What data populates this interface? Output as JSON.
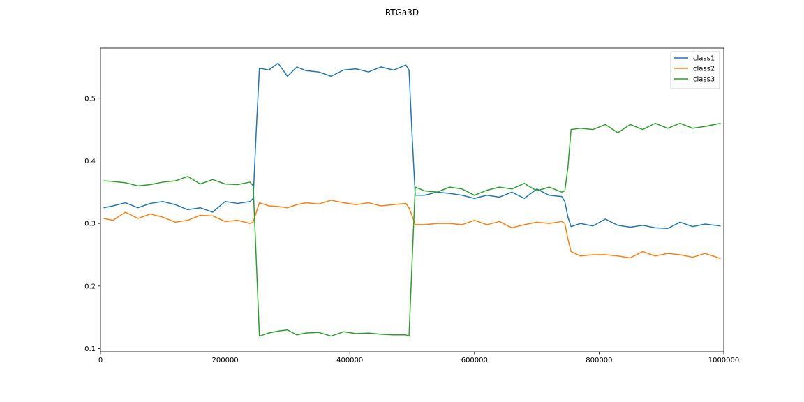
{
  "chart_data": {
    "type": "line",
    "title": "RTGa3D",
    "xlabel": "",
    "ylabel": "",
    "xlim": [
      0,
      1000000
    ],
    "ylim": [
      0.095,
      0.58
    ],
    "xticks": [
      0,
      200000,
      400000,
      600000,
      800000,
      1000000
    ],
    "xtick_labels": [
      "0",
      "200000",
      "400000",
      "600000",
      "800000",
      "1000000"
    ],
    "yticks": [
      0.1,
      0.2,
      0.3,
      0.4,
      0.5
    ],
    "ytick_labels": [
      "0.1",
      "0.2",
      "0.3",
      "0.4",
      "0.5"
    ],
    "grid": false,
    "legend_position": "top-right",
    "series": [
      {
        "name": "class1",
        "color": "#1f77b4",
        "x": [
          5000,
          20000,
          40000,
          60000,
          80000,
          100000,
          120000,
          140000,
          160000,
          180000,
          200000,
          220000,
          240000,
          245000,
          250000,
          255000,
          270000,
          285000,
          300000,
          315000,
          330000,
          350000,
          370000,
          390000,
          410000,
          430000,
          450000,
          470000,
          490000,
          495000,
          500000,
          505000,
          520000,
          540000,
          560000,
          580000,
          600000,
          620000,
          640000,
          660000,
          680000,
          700000,
          720000,
          740000,
          745000,
          750000,
          755000,
          770000,
          790000,
          810000,
          830000,
          850000,
          870000,
          890000,
          910000,
          930000,
          950000,
          970000,
          995000
        ],
        "y": [
          0.325,
          0.328,
          0.333,
          0.325,
          0.332,
          0.335,
          0.33,
          0.322,
          0.325,
          0.318,
          0.335,
          0.332,
          0.335,
          0.34,
          0.45,
          0.548,
          0.545,
          0.556,
          0.535,
          0.55,
          0.544,
          0.542,
          0.535,
          0.545,
          0.547,
          0.542,
          0.55,
          0.545,
          0.553,
          0.545,
          0.44,
          0.345,
          0.345,
          0.35,
          0.348,
          0.345,
          0.34,
          0.345,
          0.342,
          0.35,
          0.34,
          0.355,
          0.345,
          0.343,
          0.335,
          0.31,
          0.295,
          0.3,
          0.296,
          0.307,
          0.297,
          0.294,
          0.297,
          0.293,
          0.292,
          0.302,
          0.295,
          0.299,
          0.296
        ]
      },
      {
        "name": "class2",
        "color": "#ff7f0e",
        "x": [
          5000,
          20000,
          40000,
          60000,
          80000,
          100000,
          120000,
          140000,
          160000,
          180000,
          200000,
          220000,
          240000,
          245000,
          250000,
          255000,
          270000,
          285000,
          300000,
          315000,
          330000,
          350000,
          370000,
          390000,
          410000,
          430000,
          450000,
          470000,
          490000,
          495000,
          500000,
          505000,
          520000,
          540000,
          560000,
          580000,
          600000,
          620000,
          640000,
          660000,
          680000,
          700000,
          720000,
          740000,
          745000,
          750000,
          755000,
          770000,
          790000,
          810000,
          830000,
          850000,
          870000,
          890000,
          910000,
          930000,
          950000,
          970000,
          995000
        ],
        "y": [
          0.308,
          0.305,
          0.318,
          0.308,
          0.315,
          0.31,
          0.302,
          0.305,
          0.313,
          0.312,
          0.303,
          0.305,
          0.3,
          0.302,
          0.318,
          0.333,
          0.328,
          0.327,
          0.325,
          0.33,
          0.333,
          0.331,
          0.337,
          0.333,
          0.33,
          0.333,
          0.328,
          0.33,
          0.332,
          0.325,
          0.312,
          0.298,
          0.298,
          0.3,
          0.3,
          0.298,
          0.305,
          0.298,
          0.303,
          0.293,
          0.298,
          0.302,
          0.3,
          0.303,
          0.3,
          0.275,
          0.255,
          0.248,
          0.25,
          0.25,
          0.248,
          0.245,
          0.255,
          0.248,
          0.252,
          0.25,
          0.246,
          0.252,
          0.244
        ]
      },
      {
        "name": "class3",
        "color": "#2ca02c",
        "x": [
          5000,
          20000,
          40000,
          60000,
          80000,
          100000,
          120000,
          140000,
          160000,
          180000,
          200000,
          220000,
          240000,
          245000,
          250000,
          255000,
          270000,
          285000,
          300000,
          315000,
          330000,
          350000,
          370000,
          390000,
          410000,
          430000,
          450000,
          470000,
          490000,
          495000,
          500000,
          505000,
          520000,
          540000,
          560000,
          580000,
          600000,
          620000,
          640000,
          660000,
          680000,
          700000,
          720000,
          740000,
          745000,
          750000,
          755000,
          770000,
          790000,
          810000,
          830000,
          850000,
          870000,
          890000,
          910000,
          930000,
          950000,
          970000,
          995000
        ],
        "y": [
          0.368,
          0.367,
          0.365,
          0.36,
          0.362,
          0.366,
          0.368,
          0.375,
          0.363,
          0.37,
          0.363,
          0.362,
          0.366,
          0.36,
          0.24,
          0.12,
          0.125,
          0.128,
          0.13,
          0.122,
          0.125,
          0.126,
          0.12,
          0.127,
          0.124,
          0.125,
          0.123,
          0.122,
          0.122,
          0.12,
          0.24,
          0.358,
          0.352,
          0.35,
          0.358,
          0.355,
          0.345,
          0.353,
          0.358,
          0.355,
          0.364,
          0.352,
          0.358,
          0.35,
          0.352,
          0.39,
          0.45,
          0.452,
          0.45,
          0.458,
          0.445,
          0.458,
          0.45,
          0.46,
          0.452,
          0.46,
          0.452,
          0.455,
          0.46
        ]
      }
    ]
  }
}
